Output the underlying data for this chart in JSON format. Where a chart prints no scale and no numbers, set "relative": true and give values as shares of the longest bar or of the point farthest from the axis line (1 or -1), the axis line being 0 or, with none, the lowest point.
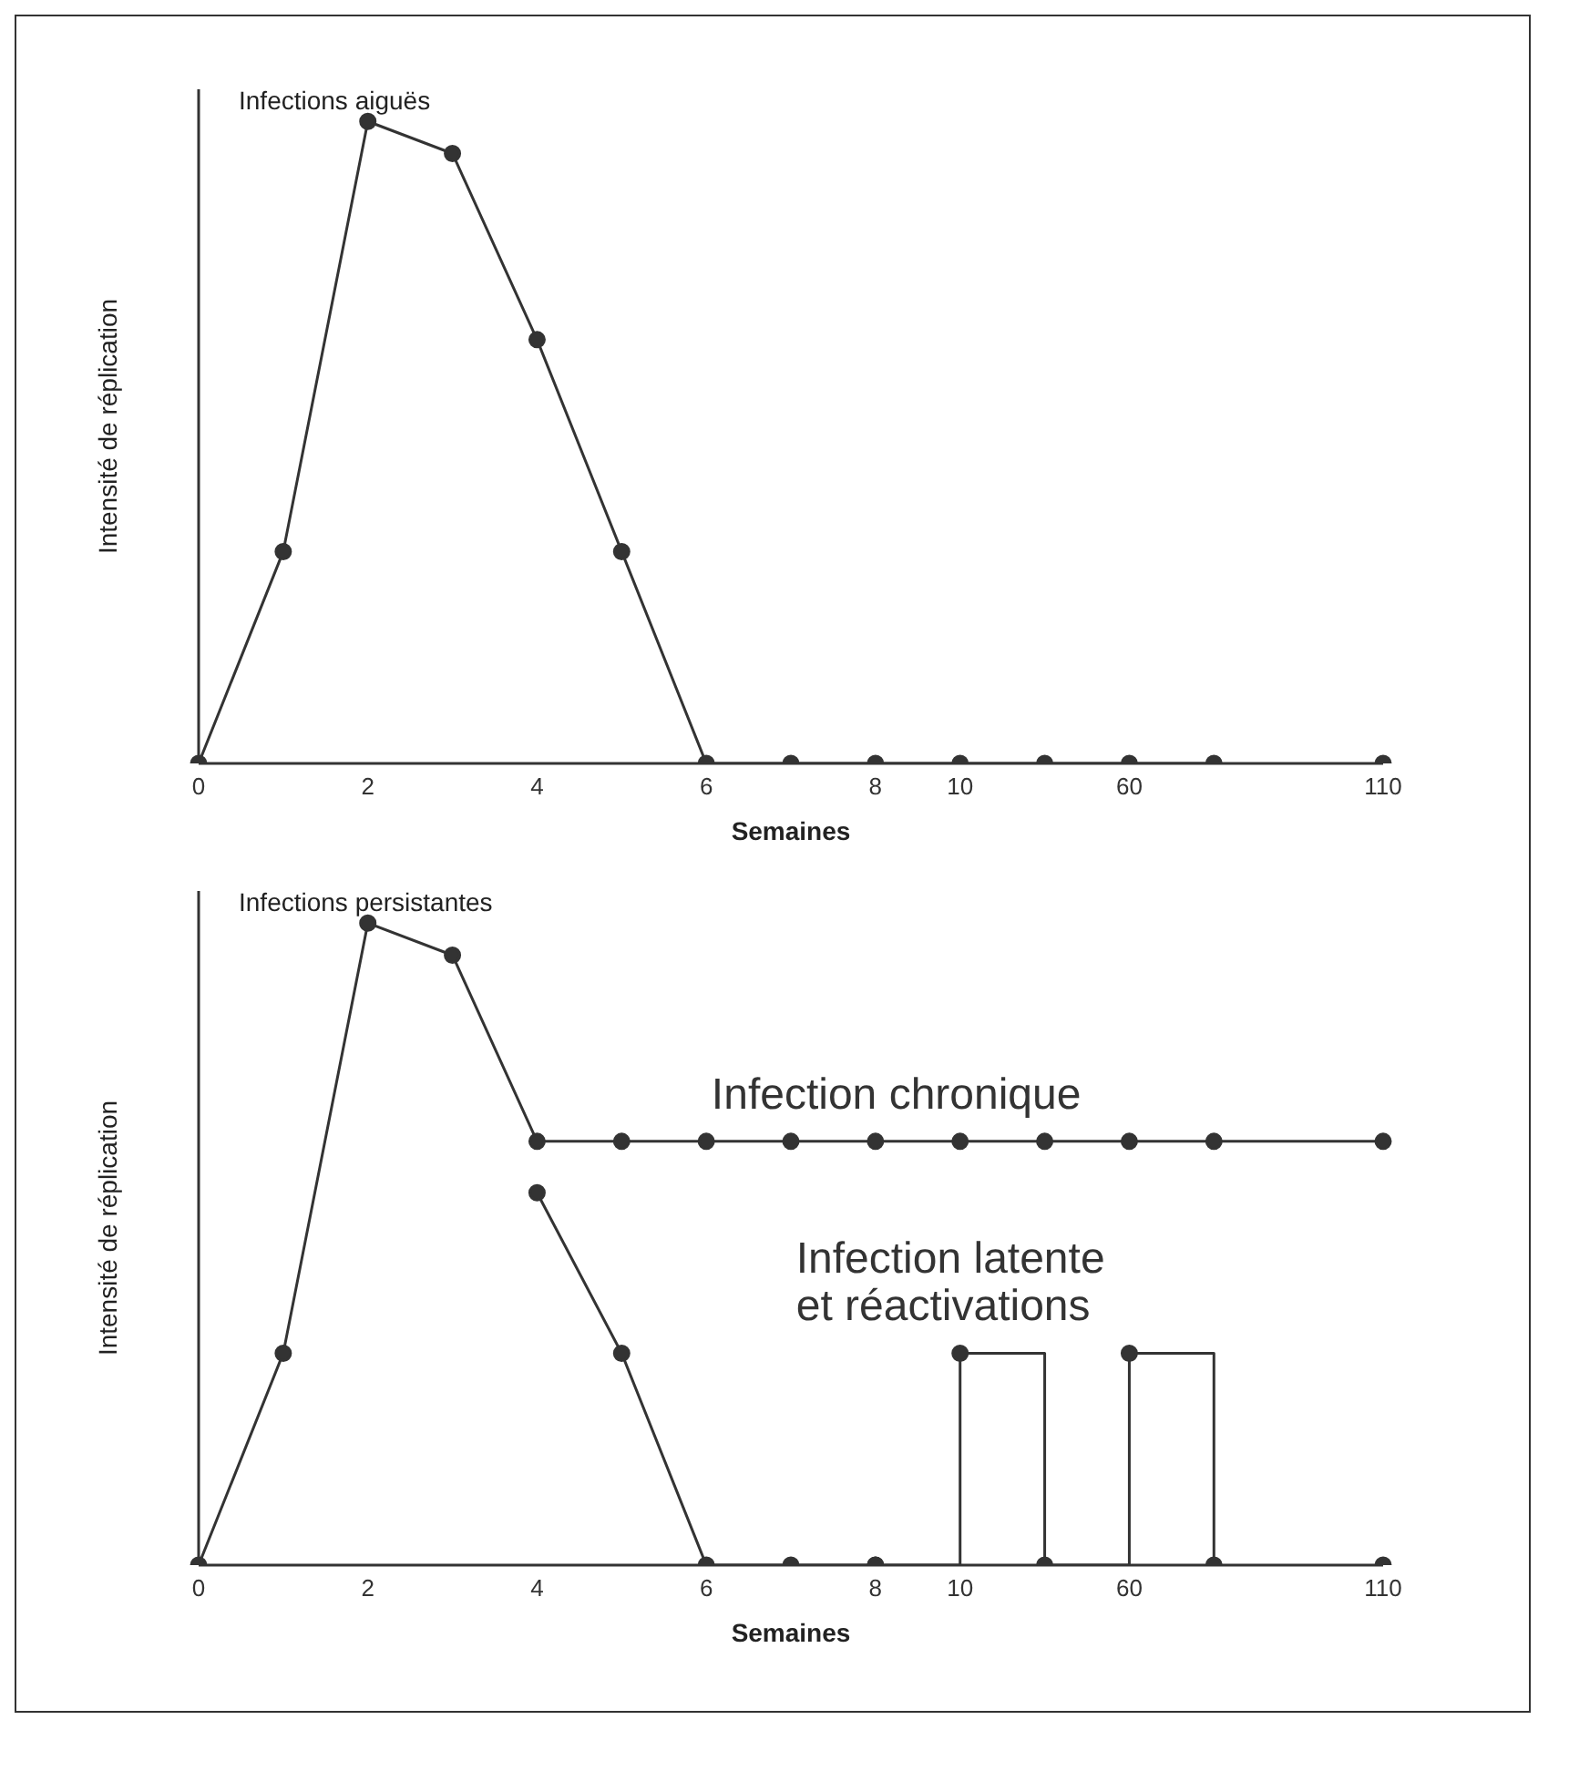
{
  "chart_data": [
    {
      "type": "line",
      "title": "Infections aiguës",
      "xlabel": "Semaines",
      "ylabel": "Intensité de réplication",
      "relative": true,
      "tick_labels": "x",
      "marker": "circle",
      "categories": [
        "0",
        null,
        "2",
        null,
        "4",
        null,
        "6",
        null,
        "8",
        "10",
        null,
        "60",
        null,
        null,
        "110"
      ],
      "series": [
        {
          "color": "#333333",
          "values": [
            0,
            0.33,
            1,
            0.95,
            0.66,
            0.33,
            0,
            0,
            0,
            0,
            0,
            0,
            0,
            null,
            0
          ]
        }
      ]
    },
    {
      "type": "line",
      "title": "Infections persistantes",
      "xlabel": "Semaines",
      "ylabel": "Intensité de réplication",
      "relative": true,
      "tick_labels": "x",
      "marker": "circle",
      "categories": [
        "0",
        null,
        "2",
        null,
        "4",
        null,
        "6",
        null,
        "8",
        "10",
        null,
        "60",
        null,
        null,
        "110"
      ],
      "series": [
        {
          "name": "Infection chronique",
          "color": "#333333",
          "values": [
            0,
            0.33,
            1,
            0.95,
            0.66,
            0.66,
            0.66,
            0.66,
            0.66,
            0.66,
            0.66,
            0.66,
            0.66,
            null,
            0.66
          ]
        },
        {
          "color": "#333333",
          "values": [
            null,
            null,
            null,
            null,
            0.58,
            0.33,
            0,
            0,
            0,
            null,
            null,
            null,
            null,
            null,
            0
          ]
        },
        {
          "name": "Infection latente et réactivations",
          "type": "step",
          "color": "#333333",
          "values": [
            null,
            null,
            null,
            null,
            null,
            null,
            null,
            null,
            0,
            0.33,
            0,
            0.33,
            0,
            null,
            null
          ]
        }
      ]
    }
  ]
}
